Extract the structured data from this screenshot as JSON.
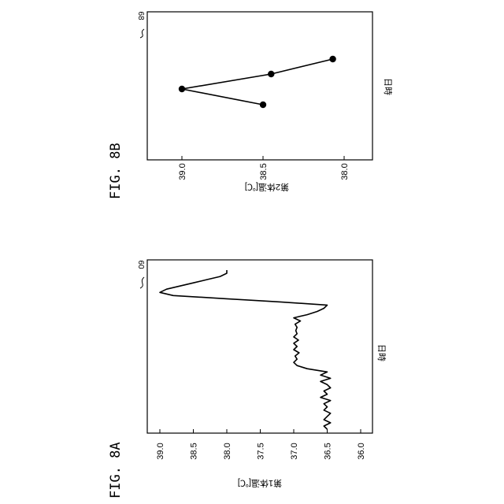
{
  "figures": [
    {
      "id": "8A",
      "caption": "FIG. 8A",
      "reference_numeral": "60",
      "chart_data": {
        "type": "line",
        "orientation": "rotated-90-clockwise",
        "xlabel": "日時",
        "ylabel": "第1体温[℃]",
        "ylim": [
          36.0,
          39.0
        ],
        "yticks": [
          "39.0",
          "38.5",
          "38.0",
          "37.5",
          "37.0",
          "36.5",
          "36.0"
        ],
        "grid": false,
        "series": [
          {
            "x": [
              0,
              1,
              2,
              3,
              4,
              5,
              6,
              7,
              8,
              9,
              10,
              11,
              12,
              13,
              14,
              15,
              16,
              17,
              18,
              19,
              20,
              21,
              22,
              23,
              24,
              25,
              26,
              27,
              28,
              29,
              30,
              31,
              32,
              33,
              34,
              35,
              36,
              37,
              38,
              39,
              40,
              41,
              42,
              43,
              44,
              45,
              46,
              47,
              48,
              49,
              50
            ],
            "values": [
              36.5,
              36.55,
              36.45,
              36.55,
              36.5,
              36.45,
              36.55,
              36.5,
              36.55,
              36.45,
              36.6,
              36.5,
              36.55,
              36.45,
              36.5,
              36.6,
              36.45,
              36.6,
              36.5,
              36.8,
              36.95,
              37.0,
              36.95,
              36.98,
              36.92,
              37.0,
              36.95,
              37.0,
              36.93,
              37.0,
              36.95,
              36.97,
              36.95,
              36.98,
              36.9,
              37.0,
              36.8,
              36.65,
              36.55,
              36.5,
              37.2,
              38.0,
              38.8,
              39.0,
              38.9,
              38.7,
              38.5,
              38.3,
              38.1,
              38.0,
              38.0
            ]
          }
        ]
      }
    },
    {
      "id": "8B",
      "caption": "FIG. 8B",
      "reference_numeral": "68",
      "chart_data": {
        "type": "line",
        "orientation": "rotated-90-clockwise",
        "xlabel": "日時",
        "ylabel": "第2体温[℃]",
        "ylim": [
          37.9,
          39.2
        ],
        "yticks": [
          "39.0",
          "38.5",
          "38.0"
        ],
        "grid": false,
        "markers": true,
        "series": [
          {
            "x": [
              1,
              2,
              3,
              4
            ],
            "values": [
              38.5,
              39.0,
              38.45,
              38.07
            ]
          }
        ]
      }
    }
  ]
}
